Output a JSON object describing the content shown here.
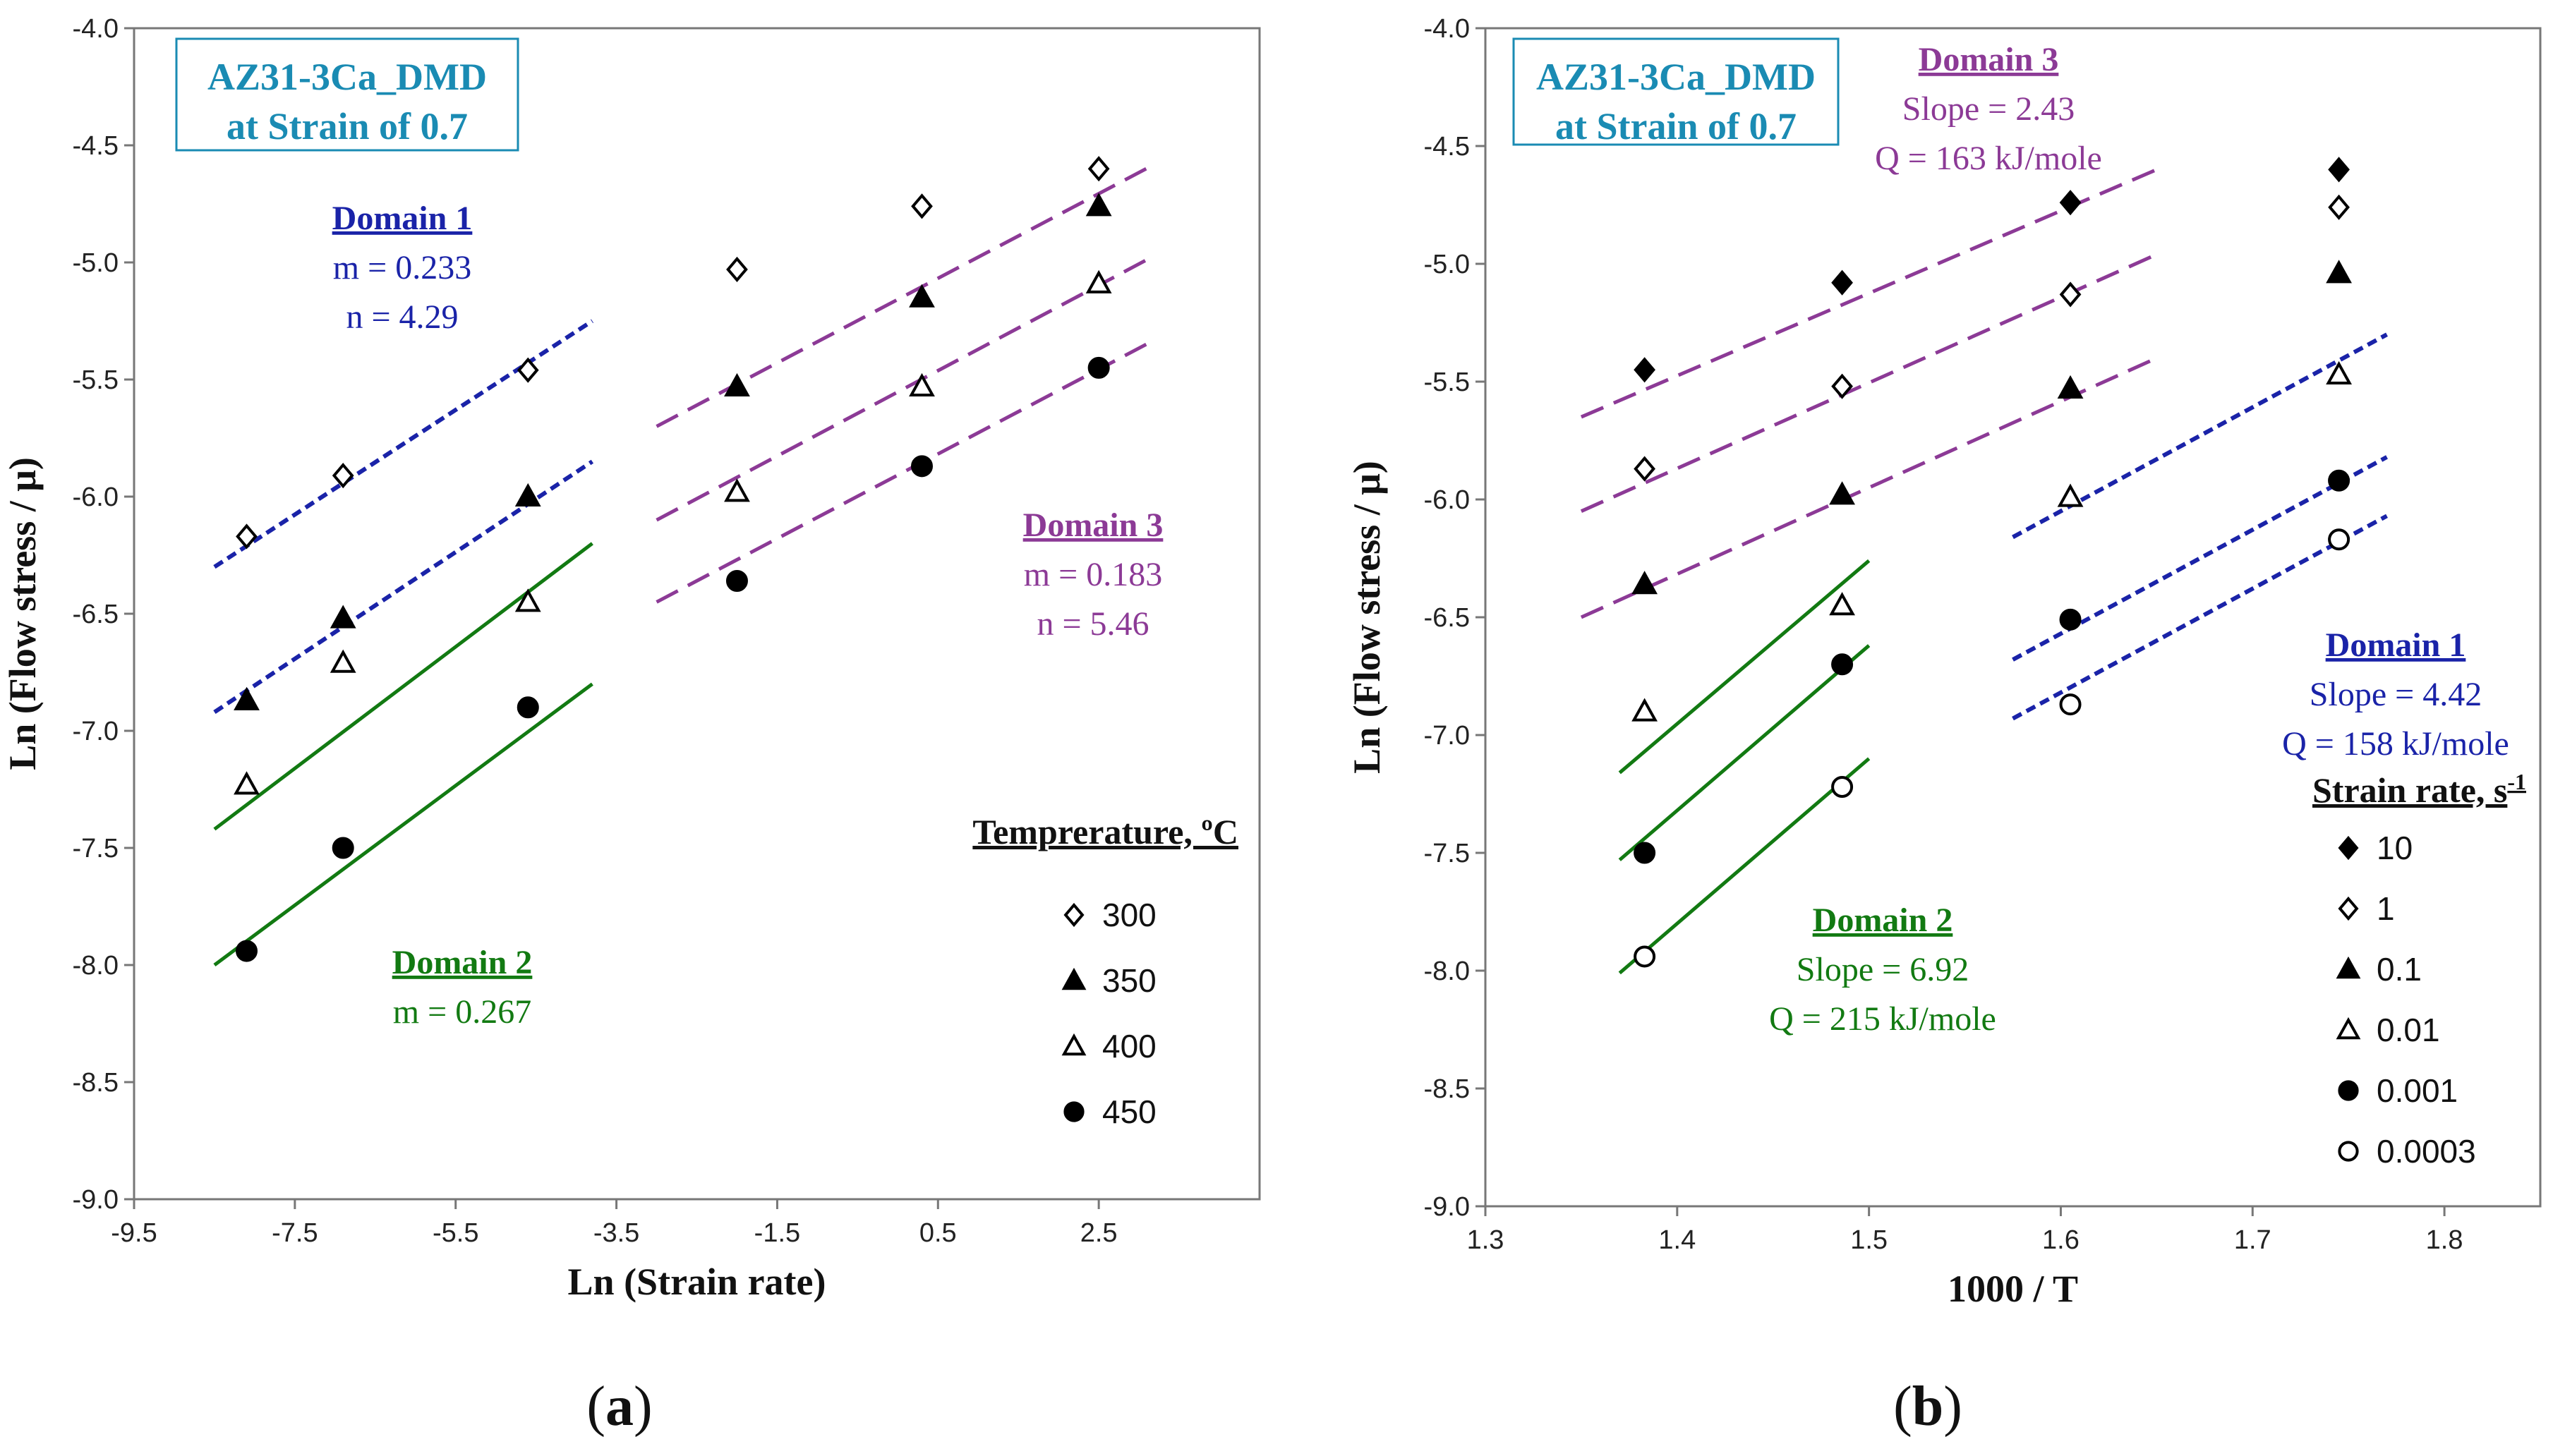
{
  "colors": {
    "domain1": "#1a23a8",
    "domain2": "#127a12",
    "domain3": "#8c3a96",
    "box_text": "#1a8bb3",
    "box_border": "#1a8bb3"
  },
  "chart_data": [
    {
      "type": "scatter",
      "panel": "a",
      "panel_label": "a",
      "title_box": [
        "AZ31-3Ca_DMD",
        "at Strain of 0.7"
      ],
      "xlabel": "Ln (Strain rate)",
      "ylabel": "Ln (Flow stress / μ)",
      "xlim": [
        -9.5,
        4.5
      ],
      "ylim": [
        -9.0,
        -4.0
      ],
      "xticks": [
        -9.5,
        -7.5,
        -5.5,
        -3.5,
        -1.5,
        0.5,
        2.5
      ],
      "xtick_labels": [
        "-9.5",
        "-7.5",
        "-5.5",
        "-3.5",
        "-1.5",
        "0.5",
        "2.5"
      ],
      "yticks": [
        -4.0,
        -4.5,
        -5.0,
        -5.5,
        -6.0,
        -6.5,
        -7.0,
        -7.5,
        -8.0,
        -8.5,
        -9.0
      ],
      "ytick_labels": [
        "-4.0",
        "-4.5",
        "-5.0",
        "-5.5",
        "-6.0",
        "-6.5",
        "-7.0",
        "-7.5",
        "-8.0",
        "-8.5",
        "-9.0"
      ],
      "legend": {
        "title": "Temprerature, ºC",
        "position": "bottom-right",
        "entries": [
          {
            "label": "300",
            "marker": "diamond-open"
          },
          {
            "label": "350",
            "marker": "triangle-filled"
          },
          {
            "label": "400",
            "marker": "triangle-open"
          },
          {
            "label": "450",
            "marker": "circle-filled"
          }
        ]
      },
      "series": [
        {
          "name": "300",
          "marker": "diamond-open",
          "x": [
            -8.1,
            -6.9,
            -4.6,
            -2.0,
            0.3,
            2.5
          ],
          "y": [
            -6.17,
            -5.91,
            -5.46,
            -5.03,
            -4.76,
            -4.6
          ]
        },
        {
          "name": "350",
          "marker": "triangle-filled",
          "x": [
            -8.1,
            -6.9,
            -4.6,
            -2.0,
            0.3,
            2.5
          ],
          "y": [
            -6.87,
            -6.52,
            -6.0,
            -5.53,
            -5.15,
            -4.76
          ]
        },
        {
          "name": "400",
          "marker": "triangle-open",
          "x": [
            -8.1,
            -6.9,
            -4.6,
            -2.0,
            0.3,
            2.5
          ],
          "y": [
            -7.23,
            -6.71,
            -6.45,
            -5.98,
            -5.53,
            -5.09
          ]
        },
        {
          "name": "450",
          "marker": "circle-filled",
          "x": [
            -8.1,
            -6.9,
            -4.6,
            -2.0,
            0.3,
            2.5
          ],
          "y": [
            -7.94,
            -7.5,
            -6.9,
            -6.36,
            -5.87,
            -5.45
          ]
        }
      ],
      "fit_lines": [
        {
          "domain": "1",
          "style": "dotted",
          "x": [
            -8.5,
            -3.8
          ],
          "y": [
            -6.3,
            -5.25
          ]
        },
        {
          "domain": "1",
          "style": "dotted",
          "x": [
            -8.5,
            -3.8
          ],
          "y": [
            -6.92,
            -5.85
          ]
        },
        {
          "domain": "2",
          "style": "solid",
          "x": [
            -8.5,
            -3.8
          ],
          "y": [
            -7.42,
            -6.2
          ]
        },
        {
          "domain": "2",
          "style": "solid",
          "x": [
            -8.5,
            -3.8
          ],
          "y": [
            -8.0,
            -6.8
          ]
        },
        {
          "domain": "3",
          "style": "dashed",
          "x": [
            -3.0,
            3.2
          ],
          "y": [
            -5.7,
            -4.58
          ]
        },
        {
          "domain": "3",
          "style": "dashed",
          "x": [
            -3.0,
            3.2
          ],
          "y": [
            -6.1,
            -4.97
          ]
        },
        {
          "domain": "3",
          "style": "dashed",
          "x": [
            -3.0,
            3.2
          ],
          "y": [
            -6.45,
            -5.33
          ]
        }
      ],
      "annotations": [
        {
          "domain": "1",
          "heading": "Domain 1",
          "lines": [
            "m = 0.233",
            "n = 4.29"
          ]
        },
        {
          "domain": "2",
          "heading": "Domain 2",
          "lines": [
            "m = 0.267"
          ]
        },
        {
          "domain": "3",
          "heading": "Domain 3",
          "lines": [
            "m = 0.183",
            "n = 5.46"
          ]
        }
      ]
    },
    {
      "type": "scatter",
      "panel": "b",
      "panel_label": "b",
      "title_box": [
        "AZ31-3Ca_DMD",
        "at Strain of 0.7"
      ],
      "xlabel": "1000 / T",
      "ylabel": "Ln (Flow stress / μ)",
      "xlim": [
        1.3,
        1.85
      ],
      "ylim": [
        -9.0,
        -4.0
      ],
      "xticks": [
        1.3,
        1.4,
        1.5,
        1.6,
        1.7,
        1.8
      ],
      "xtick_labels": [
        "1.3",
        "1.4",
        "1.5",
        "1.6",
        "1.7",
        "1.8"
      ],
      "yticks": [
        -4.0,
        -4.5,
        -5.0,
        -5.5,
        -6.0,
        -6.5,
        -7.0,
        -7.5,
        -8.0,
        -8.5,
        -9.0
      ],
      "ytick_labels": [
        "-4.0",
        "-4.5",
        "-5.0",
        "-5.5",
        "-6.0",
        "-6.5",
        "-7.0",
        "-7.5",
        "-8.0",
        "-8.5",
        "-9.0"
      ],
      "legend": {
        "title": "Strain rate, s",
        "title_sup": "-1",
        "position": "bottom-right",
        "entries": [
          {
            "label": "10",
            "marker": "diamond-filled"
          },
          {
            "label": "1",
            "marker": "diamond-open"
          },
          {
            "label": "0.1",
            "marker": "triangle-filled"
          },
          {
            "label": "0.01",
            "marker": "triangle-open"
          },
          {
            "label": "0.001",
            "marker": "circle-filled"
          },
          {
            "label": "0.0003",
            "marker": "circle-open"
          }
        ]
      },
      "series": [
        {
          "name": "10",
          "marker": "diamond-filled",
          "x": [
            1.383,
            1.486,
            1.605,
            1.745
          ],
          "y": [
            -5.45,
            -5.08,
            -4.74,
            -4.6
          ]
        },
        {
          "name": "1",
          "marker": "diamond-open",
          "x": [
            1.383,
            1.486,
            1.605,
            1.745
          ],
          "y": [
            -5.87,
            -5.52,
            -5.13,
            -4.76
          ]
        },
        {
          "name": "0.1",
          "marker": "triangle-filled",
          "x": [
            1.383,
            1.486,
            1.605,
            1.745
          ],
          "y": [
            -6.36,
            -5.98,
            -5.53,
            -5.04
          ]
        },
        {
          "name": "0.01",
          "marker": "triangle-open",
          "x": [
            1.383,
            1.486,
            1.605,
            1.745
          ],
          "y": [
            -6.9,
            -6.45,
            -5.99,
            -5.47
          ]
        },
        {
          "name": "0.001",
          "marker": "circle-filled",
          "x": [
            1.383,
            1.486,
            1.605,
            1.745
          ],
          "y": [
            -7.5,
            -6.7,
            -6.51,
            -5.92
          ]
        },
        {
          "name": "0.0003",
          "marker": "circle-open",
          "x": [
            1.383,
            1.486,
            1.605,
            1.745
          ],
          "y": [
            -7.94,
            -7.22,
            -6.87,
            -6.17
          ]
        }
      ],
      "fit_lines": [
        {
          "domain": "3",
          "style": "dashed",
          "x": [
            1.35,
            1.65
          ],
          "y": [
            -5.65,
            -4.6
          ]
        },
        {
          "domain": "3",
          "style": "dashed",
          "x": [
            1.35,
            1.65
          ],
          "y": [
            -6.05,
            -4.96
          ]
        },
        {
          "domain": "3",
          "style": "dashed",
          "x": [
            1.35,
            1.65
          ],
          "y": [
            -6.5,
            -5.4
          ]
        },
        {
          "domain": "2",
          "style": "solid",
          "x": [
            1.37,
            1.5
          ],
          "y": [
            -7.16,
            -6.26
          ]
        },
        {
          "domain": "2",
          "style": "solid",
          "x": [
            1.37,
            1.5
          ],
          "y": [
            -7.53,
            -6.62
          ]
        },
        {
          "domain": "2",
          "style": "solid",
          "x": [
            1.37,
            1.5
          ],
          "y": [
            -8.01,
            -7.1
          ]
        },
        {
          "domain": "1",
          "style": "dotted",
          "x": [
            1.575,
            1.77
          ],
          "y": [
            -6.16,
            -5.3
          ]
        },
        {
          "domain": "1",
          "style": "dotted",
          "x": [
            1.575,
            1.77
          ],
          "y": [
            -6.68,
            -5.82
          ]
        },
        {
          "domain": "1",
          "style": "dotted",
          "x": [
            1.575,
            1.77
          ],
          "y": [
            -6.93,
            -6.07
          ]
        }
      ],
      "annotations": [
        {
          "domain": "3",
          "heading": "Domain 3",
          "lines": [
            "Slope = 2.43",
            "Q = 163 kJ/mole"
          ]
        },
        {
          "domain": "1",
          "heading": "Domain 1",
          "lines": [
            "Slope = 4.42",
            "Q = 158 kJ/mole"
          ]
        },
        {
          "domain": "2",
          "heading": "Domain 2",
          "lines": [
            "Slope = 6.92",
            "Q = 215 kJ/mole"
          ]
        }
      ]
    }
  ]
}
